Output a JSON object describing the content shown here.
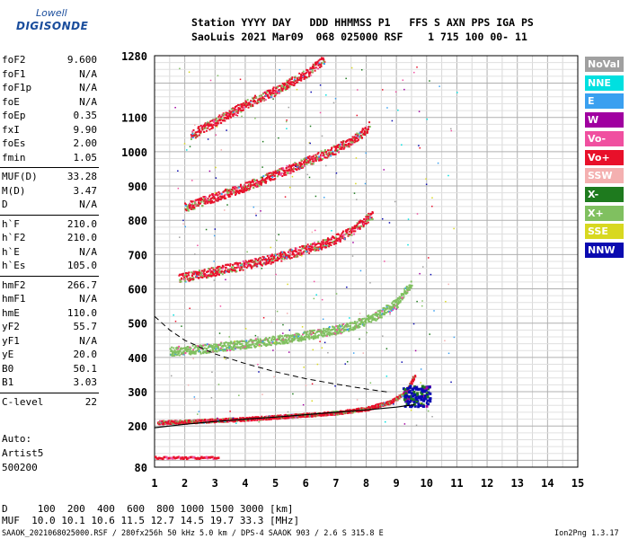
{
  "logo": {
    "top": "Lowell",
    "bottom": "DIGISONDE"
  },
  "header": {
    "line1": "Station YYYY DAY   DDD HHMMSS P1   FFS S AXN PPS IGA PS",
    "line2": "SaoLuis 2021 Mar09  068 025000 RSF    1 715 100 00- 11"
  },
  "params": [
    {
      "name": "foF2",
      "value": "9.600"
    },
    {
      "name": "foF1",
      "value": "N/A"
    },
    {
      "name": "foF1p",
      "value": "N/A"
    },
    {
      "name": "foE",
      "value": "N/A"
    },
    {
      "name": "foEp",
      "value": "0.35"
    },
    {
      "name": "fxI",
      "value": "9.90"
    },
    {
      "name": "foEs",
      "value": "2.00"
    },
    {
      "name": "fmin",
      "value": "1.05"
    },
    {
      "name": "MUF(D)",
      "value": "33.28"
    },
    {
      "name": "M(D)",
      "value": "3.47"
    },
    {
      "name": "D",
      "value": "N/A"
    },
    {
      "name": "h`F",
      "value": "210.0"
    },
    {
      "name": "h`F2",
      "value": "210.0"
    },
    {
      "name": "h`E",
      "value": "N/A"
    },
    {
      "name": "h`Es",
      "value": "105.0"
    },
    {
      "name": "hmF2",
      "value": "266.7"
    },
    {
      "name": "hmF1",
      "value": "N/A"
    },
    {
      "name": "hmE",
      "value": "110.0"
    },
    {
      "name": "yF2",
      "value": "55.7"
    },
    {
      "name": "yF1",
      "value": "N/A"
    },
    {
      "name": "yE",
      "value": "20.0"
    },
    {
      "name": "B0",
      "value": "50.1"
    },
    {
      "name": "B1",
      "value": "3.03"
    },
    {
      "name": "C-level",
      "value": "22"
    }
  ],
  "autoscale": {
    "line1": "Auto:",
    "line2": "Artist5",
    "line3": "500200"
  },
  "legend": [
    {
      "label": "NoVal",
      "color": "#a0a0a0"
    },
    {
      "label": "NNE",
      "color": "#00e0e0"
    },
    {
      "label": "E",
      "color": "#3aa0f0"
    },
    {
      "label": "W",
      "color": "#a000a0"
    },
    {
      "label": "Vo-",
      "color": "#f050a0"
    },
    {
      "label": "Vo+",
      "color": "#e8102a"
    },
    {
      "label": "SSW",
      "color": "#f4b0b0"
    },
    {
      "label": "X-",
      "color": "#1e7a1e"
    },
    {
      "label": "X+",
      "color": "#80c060"
    },
    {
      "label": "SSE",
      "color": "#d8d820"
    },
    {
      "label": "NNW",
      "color": "#0a0ab0"
    }
  ],
  "footer": {
    "d_line": "D     100  200  400  600  800 1000 1500 3000 [km]",
    "muf_line": "MUF  10.0 10.1 10.6 11.5 12.7 14.5 19.7 33.3 [MHz]",
    "file_info": "SAAOK_2021068025000.RSF / 280fx256h 50 kHz 5.0 km / DPS-4 SAAOK 903 / 2.6 S 315.8 E",
    "version": "Ion2Png 1.3.17"
  },
  "chart_data": {
    "type": "scatter",
    "xlim": [
      1,
      15
    ],
    "ylim": [
      80,
      1280
    ],
    "x_ticks": [
      "1",
      "2",
      "3",
      "4",
      "5",
      "6",
      "7",
      "8",
      "9",
      "10",
      "11",
      "12",
      "13",
      "14",
      "15"
    ],
    "y_ticks": [
      {
        "value": 80,
        "label": "80"
      },
      {
        "value": 200,
        "label": "200"
      },
      {
        "value": 300,
        "label": "300"
      },
      {
        "value": 400,
        "label": "400"
      },
      {
        "value": 500,
        "label": "500"
      },
      {
        "value": 600,
        "label": "600"
      },
      {
        "value": 700,
        "label": "700"
      },
      {
        "value": 800,
        "label": "800"
      },
      {
        "value": 900,
        "label": "900"
      },
      {
        "value": 1000,
        "label": "1000"
      },
      {
        "value": 1100,
        "label": "1100"
      },
      {
        "value": 1280,
        "label": "1280"
      }
    ],
    "grid": true,
    "traces": [
      {
        "color": "#e8102a",
        "points": [
          [
            1.1,
            212
          ],
          [
            2,
            214
          ],
          [
            3,
            218
          ],
          [
            4,
            222
          ],
          [
            5,
            228
          ],
          [
            6,
            234
          ],
          [
            7,
            240
          ],
          [
            8,
            252
          ],
          [
            8.8,
            272
          ],
          [
            9.3,
            300
          ],
          [
            9.6,
            350
          ]
        ]
      },
      {
        "color": "#80c060",
        "points": [
          [
            1.5,
            420
          ],
          [
            2.5,
            426
          ],
          [
            3.5,
            436
          ],
          [
            4.5,
            446
          ],
          [
            5.5,
            458
          ],
          [
            6.5,
            474
          ],
          [
            7.5,
            492
          ],
          [
            8.3,
            522
          ],
          [
            9,
            560
          ],
          [
            9.5,
            620
          ]
        ]
      },
      {
        "color": "#e8102a",
        "points": [
          [
            1.8,
            632
          ],
          [
            2.8,
            650
          ],
          [
            3.8,
            668
          ],
          [
            4.8,
            688
          ],
          [
            5.8,
            712
          ],
          [
            6.8,
            740
          ],
          [
            7.6,
            776
          ],
          [
            8.2,
            820
          ]
        ]
      },
      {
        "color": "#e8102a",
        "points": [
          [
            2,
            840
          ],
          [
            3,
            870
          ],
          [
            4,
            900
          ],
          [
            5,
            936
          ],
          [
            6,
            972
          ],
          [
            7,
            1010
          ],
          [
            7.8,
            1050
          ],
          [
            8.1,
            1080
          ]
        ]
      },
      {
        "color": "#e8102a",
        "points": [
          [
            2.2,
            1050
          ],
          [
            3,
            1090
          ],
          [
            4,
            1140
          ],
          [
            5,
            1180
          ],
          [
            6,
            1230
          ],
          [
            6.6,
            1270
          ]
        ]
      }
    ],
    "sporadic_e": {
      "color": "#e8102a",
      "x_range": [
        1,
        3.1
      ],
      "y": 110
    },
    "profile_curve": {
      "style": "solid",
      "color": "#000",
      "points": [
        [
          1,
          195
        ],
        [
          2,
          205
        ],
        [
          3,
          213
        ],
        [
          4,
          220
        ],
        [
          5,
          226
        ],
        [
          6,
          233
        ],
        [
          7,
          240
        ],
        [
          8,
          247
        ],
        [
          9,
          255
        ],
        [
          9.6,
          262
        ]
      ]
    },
    "dashed_curve": {
      "style": "dashed",
      "color": "#000",
      "points": [
        [
          1,
          520
        ],
        [
          1.5,
          480
        ],
        [
          2,
          450
        ],
        [
          3,
          410
        ],
        [
          4,
          382
        ],
        [
          5,
          358
        ],
        [
          6,
          338
        ],
        [
          7,
          322
        ],
        [
          8,
          308
        ],
        [
          8.8,
          298
        ]
      ]
    }
  }
}
